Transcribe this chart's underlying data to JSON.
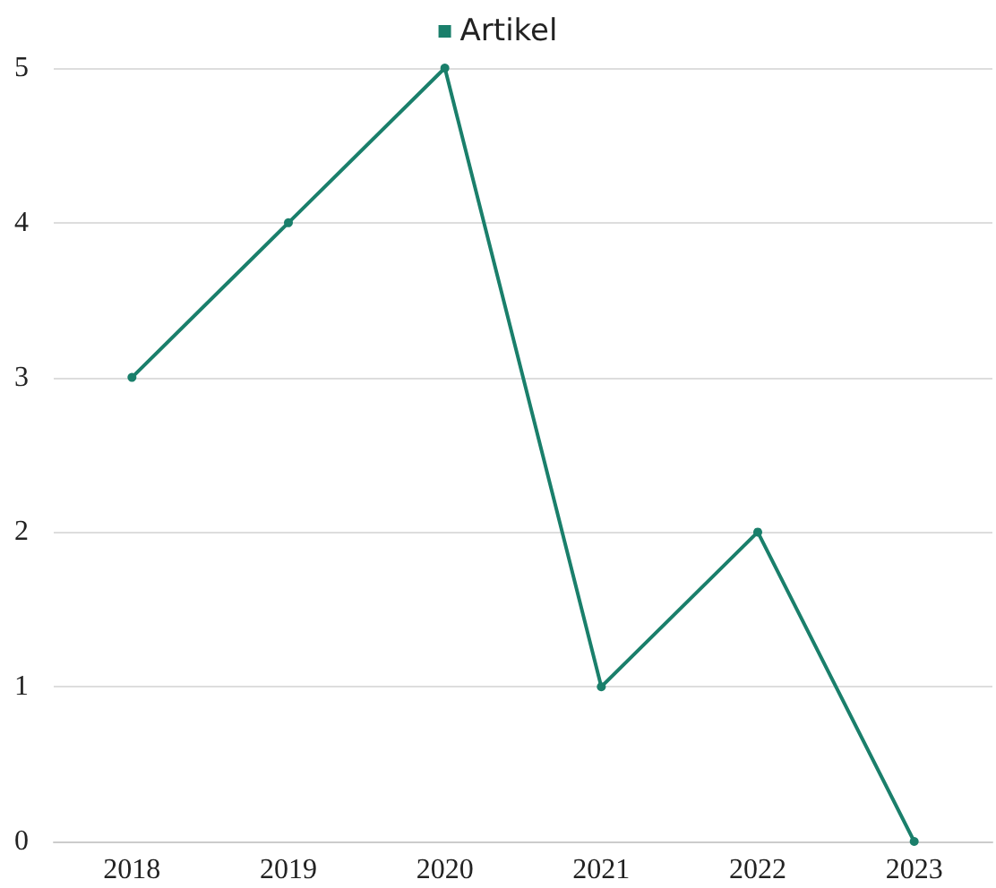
{
  "chart_data": {
    "type": "line",
    "categories": [
      "2018",
      "2019",
      "2020",
      "2021",
      "2022",
      "2023"
    ],
    "series": [
      {
        "name": "Artikel",
        "color": "#1a7f6b",
        "values": [
          3,
          4,
          5,
          1,
          2,
          0
        ]
      }
    ],
    "ylim": [
      0,
      5
    ],
    "yticks": [
      0,
      1,
      2,
      3,
      4,
      5
    ],
    "grid": "y",
    "legend": "top",
    "marker": "circle"
  }
}
